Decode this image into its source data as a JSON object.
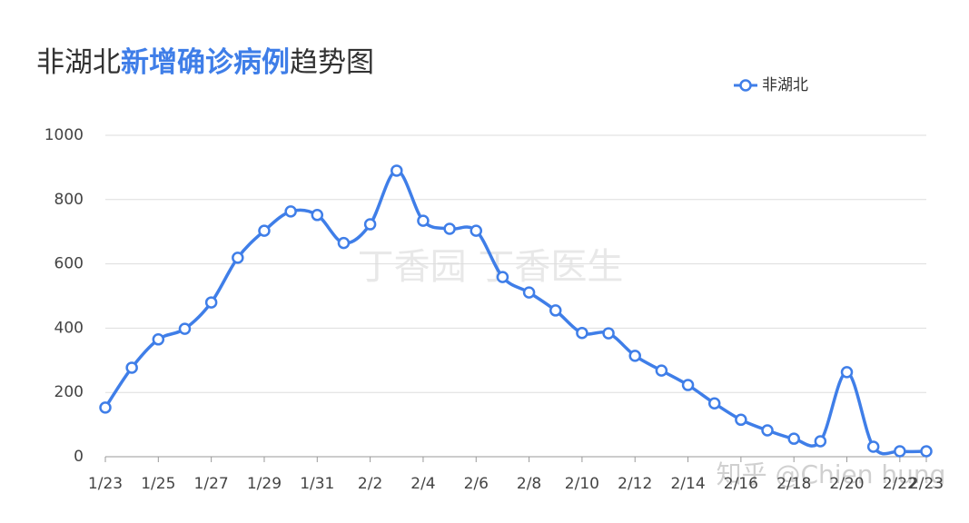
{
  "chart_data": {
    "type": "line",
    "title_parts": [
      "非湖北",
      "新增确诊病例",
      "趋势图"
    ],
    "watermarks": [
      "丁香园 丁香医生",
      "知乎 @Chien hung"
    ],
    "categories": [
      "1/23",
      null,
      "1/25",
      null,
      "1/27",
      null,
      "1/29",
      null,
      "1/31",
      null,
      "2/2",
      null,
      "2/4",
      null,
      "2/6",
      null,
      "2/8",
      null,
      "2/10",
      null,
      "2/12",
      null,
      "2/14",
      null,
      "2/16",
      null,
      "2/18",
      null,
      "2/20",
      null,
      "2/22",
      "2/23"
    ],
    "series": [
      {
        "name": "非湖北",
        "color": "#3f7ee8",
        "values": [
          153,
          277,
          365,
          398,
          480,
          619,
          703,
          763,
          752,
          665,
          723,
          890,
          734,
          709,
          703,
          559,
          511,
          455,
          385,
          384,
          314,
          268,
          223,
          166,
          115,
          82,
          56,
          48,
          263,
          31,
          17,
          17
        ]
      }
    ],
    "ylim": [
      0,
      1000
    ],
    "yticks": [
      0,
      200,
      400,
      600,
      800,
      1000
    ],
    "grid": true,
    "legend": "top-right"
  }
}
